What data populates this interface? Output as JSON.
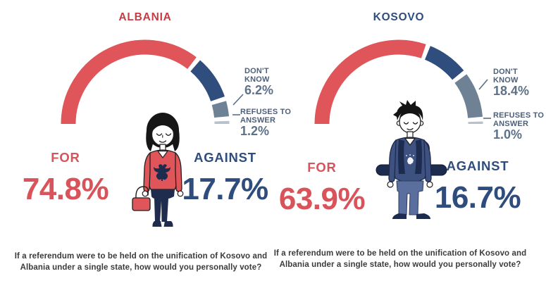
{
  "question": {
    "line1": "If a referendum were to be held on the unification of Kosovo and",
    "line2": "Albania under a single state, how would you personally vote?"
  },
  "panels": [
    {
      "title": "ALBANIA",
      "for": {
        "label": "FOR",
        "value": "74.8%"
      },
      "against": {
        "label": "AGAINST",
        "value": "17.7%"
      },
      "dont_know": {
        "label_lines": [
          "DON'T",
          "KNOW"
        ],
        "value": "6.2%"
      },
      "refuses": {
        "label_lines": [
          "REFUSES TO",
          "ANSWER"
        ],
        "value": "1.2%"
      },
      "character": "woman-in-red-albanian-eagle-sweater-with-red-handbag"
    },
    {
      "title": "KOSOVO",
      "for": {
        "label": "FOR",
        "value": "63.9%"
      },
      "against": {
        "label": "AGAINST",
        "value": "16.7%"
      },
      "dont_know": {
        "label_lines": [
          "DON'T",
          "KNOW"
        ],
        "value": "18.4%"
      },
      "refuses": {
        "label_lines": [
          "REFUSES TO",
          "ANSWER"
        ],
        "value": "1.0%"
      },
      "character": "man-in-navy-sweater-with-backpack-and-kosovo-map"
    }
  ],
  "chart_data": [
    {
      "type": "pie",
      "subtype": "half-donut-gauge",
      "title": "ALBANIA",
      "categories": [
        "FOR",
        "AGAINST",
        "DON'T KNOW",
        "REFUSES TO ANSWER"
      ],
      "values": [
        74.8,
        17.7,
        6.2,
        1.2
      ],
      "colors": [
        "#e0555a",
        "#2f4d7d",
        "#6e8195",
        "#b8c1cc"
      ],
      "span_degrees": 180,
      "legend_position": "callouts-right"
    },
    {
      "type": "pie",
      "subtype": "half-donut-gauge",
      "title": "KOSOVO",
      "categories": [
        "FOR",
        "AGAINST",
        "DON'T KNOW",
        "REFUSES TO ANSWER"
      ],
      "values": [
        63.9,
        16.7,
        18.4,
        1.0
      ],
      "colors": [
        "#e0555a",
        "#2f4d7d",
        "#6e8195",
        "#b8c1cc"
      ],
      "span_degrees": 180,
      "legend_position": "callouts-right"
    }
  ],
  "colors": {
    "red": "#d9535a",
    "arc_red": "#e0555a",
    "navy": "#2e4d7e",
    "arc_navy": "#2f4d7d",
    "slate": "#6e8195",
    "light_gray": "#b8c1cc",
    "callout_text": "#4d6078",
    "callout_value": "#5d7187",
    "title_red": "#c63c42",
    "question_text": "#3b3b3b",
    "outline_dark": "#1f1f1f",
    "dark_navy": "#1c2b4e"
  }
}
